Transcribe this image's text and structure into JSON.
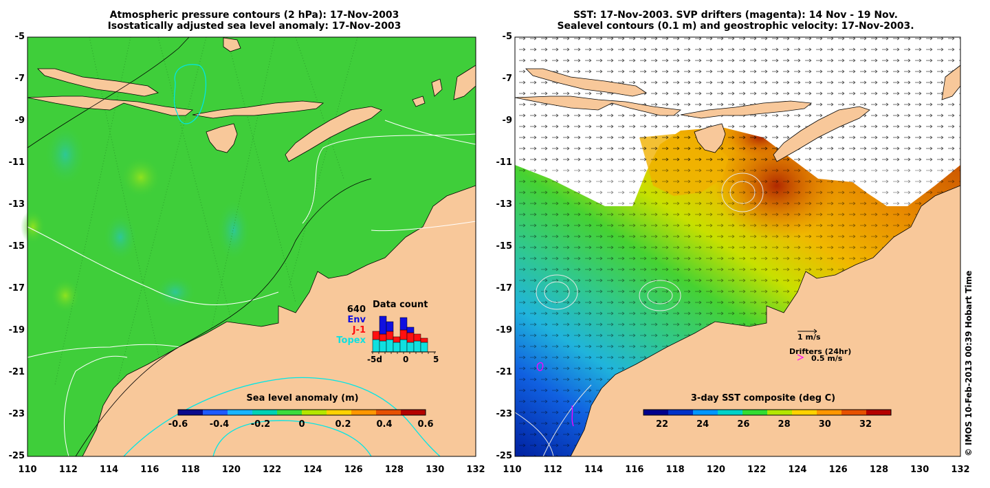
{
  "left_panel": {
    "title_line1": "Atmospheric pressure contours (2 hPa): 17-Nov-2003",
    "title_line2": "Isostatically adjusted sea level anomaly: 17-Nov-2003",
    "colorbar": {
      "title": "Sea level anomaly (m)",
      "ticks": [
        "-0.6",
        "-0.4",
        "-0.2",
        "0",
        "0.2",
        "0.4",
        "0.6"
      ],
      "colors": [
        "#0a0a8c",
        "#1e5aff",
        "#19b4ff",
        "#00d2b4",
        "#3cdc3c",
        "#b4e600",
        "#ffd200",
        "#ff9600",
        "#e65000",
        "#b40000"
      ]
    },
    "data_count": {
      "title": "Data count",
      "total": "640",
      "env_label": "Env",
      "j1_label": "J-1",
      "topex_label": "Topex",
      "env_color": "#1010e0",
      "j1_color": "#ff1010",
      "topex_color": "#10e0e0",
      "x_ticks": [
        "-5d",
        "0",
        "5"
      ]
    }
  },
  "right_panel": {
    "title_line1": "SST: 17-Nov-2003. SVP drifters (magenta): 14 Nov - 19 Nov.",
    "title_line2": "Sealevel contours (0.1 m) and geostrophic velocity: 17-Nov-2003.",
    "colorbar": {
      "title": "3-day SST composite (deg C)",
      "ticks": [
        "22",
        "24",
        "26",
        "28",
        "30",
        "32"
      ],
      "colors": [
        "#00008c",
        "#0032c8",
        "#0096ff",
        "#00d2c8",
        "#32dc32",
        "#b4e600",
        "#ffd200",
        "#ff9600",
        "#e65000",
        "#b40000"
      ]
    },
    "velocity_scale_label": "1 m/s",
    "drifters_label": "Drifters (24hr)",
    "drifter_scale_label": "0.5 m/s",
    "drifter_color": "#ff00ff"
  },
  "axes": {
    "y_ticks": [
      "-5",
      "-7",
      "-9",
      "-11",
      "-13",
      "-15",
      "-17",
      "-19",
      "-21",
      "-23",
      "-25"
    ],
    "x_ticks": [
      "110",
      "112",
      "114",
      "116",
      "118",
      "120",
      "122",
      "124",
      "126",
      "128",
      "130",
      "132"
    ]
  },
  "colors": {
    "land": "#f8c89a",
    "ocean_left": "#3fce3a",
    "cloud": "#ffffff"
  },
  "credit": "© IMOS 10-Feb-2013 00:39 Hobart Time"
}
